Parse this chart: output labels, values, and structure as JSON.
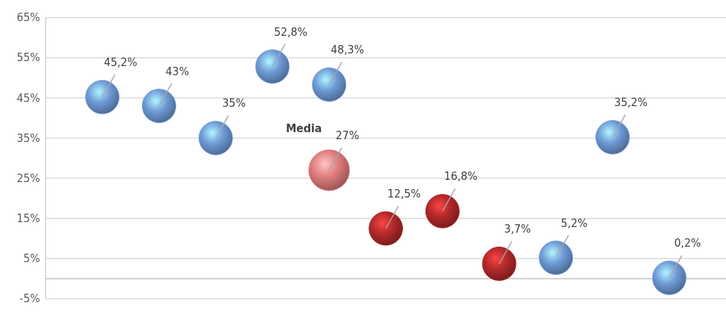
{
  "chart_data": {
    "type": "bubble",
    "categories": [
      null,
      null,
      null,
      null,
      null,
      null,
      null,
      null,
      null,
      null,
      null
    ],
    "series": [
      {
        "color": "#6f9bd8",
        "values": [
          45.2,
          43,
          35,
          52.8,
          48.3,
          null,
          null,
          null,
          5.2,
          35.2,
          0.2
        ],
        "sizes": [
          0.68,
          0.68,
          0.68,
          0.68,
          0.68,
          null,
          null,
          null,
          0.68,
          0.68,
          0.68
        ],
        "value_labels": [
          "45,2%",
          "43%",
          "35%",
          "52,8%",
          "48,3%",
          null,
          null,
          null,
          "5,2%",
          "35,2%",
          "0,2%"
        ]
      },
      {
        "color": "#b22a2a",
        "values": [
          null,
          null,
          null,
          null,
          null,
          12.5,
          16.8,
          3.7,
          null,
          null,
          null
        ],
        "sizes": [
          null,
          null,
          null,
          null,
          null,
          0.68,
          0.68,
          0.68,
          null,
          null,
          null
        ],
        "value_labels": [
          null,
          null,
          null,
          null,
          null,
          "12,5%",
          "16,8%",
          "3,7%",
          null,
          null,
          null
        ]
      },
      {
        "name": "Media",
        "color": "#e07c7c",
        "values": [
          null,
          null,
          null,
          null,
          27,
          null,
          null,
          null,
          null,
          null,
          null
        ],
        "sizes": [
          null,
          null,
          null,
          null,
          1,
          null,
          null,
          null,
          null,
          null,
          null
        ],
        "value_labels": [
          null,
          null,
          null,
          null,
          "27%",
          null,
          null,
          null,
          null,
          null,
          null
        ]
      }
    ],
    "ylim": [
      -5,
      65
    ],
    "yticks": [
      {
        "value": -5,
        "label": "-5%"
      },
      {
        "value": 5,
        "label": "5%"
      },
      {
        "value": 15,
        "label": "15%"
      },
      {
        "value": 25,
        "label": "25%"
      },
      {
        "value": 35,
        "label": "35%"
      },
      {
        "value": 45,
        "label": "45%"
      },
      {
        "value": 55,
        "label": "55%"
      },
      {
        "value": 65,
        "label": "65%"
      }
    ],
    "grid": "y"
  }
}
